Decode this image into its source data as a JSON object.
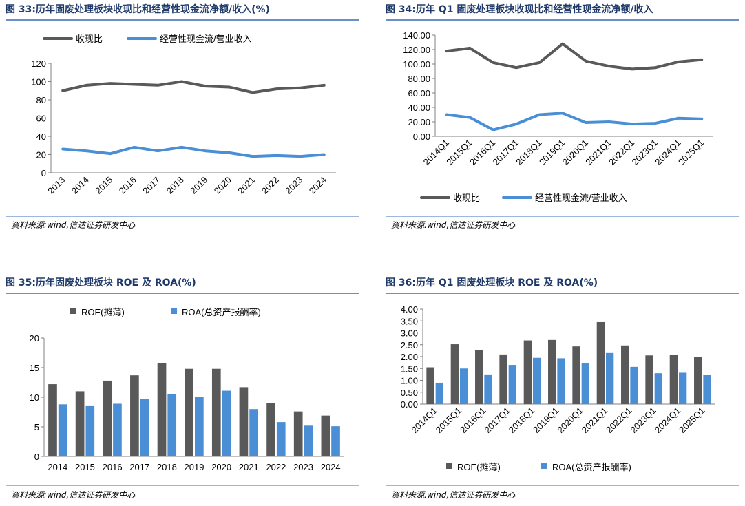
{
  "panels": [
    {
      "id": "fig33",
      "title": "图 33:历年固废处理板块收现比和经营性现金流净额/收入(%)",
      "source": "资料来源:wind,信达证券研发中心",
      "chart_data": {
        "type": "line",
        "categories": [
          "2013",
          "2014",
          "2015",
          "2016",
          "2017",
          "2018",
          "2019",
          "2020",
          "2021",
          "2022",
          "2023",
          "2024"
        ],
        "series": [
          {
            "name": "收现比",
            "color": "#595959",
            "values": [
              90,
              96,
              98,
              97,
              96,
              100,
              95,
              94,
              88,
              92,
              93,
              96
            ]
          },
          {
            "name": "经营性现金流/营业收入",
            "color": "#4a8fd6",
            "values": [
              26,
              24,
              21,
              28,
              24,
              28,
              24,
              22,
              18,
              19,
              18,
              20
            ]
          }
        ],
        "ylim": [
          0,
          120
        ],
        "yticks": [
          "0",
          "20",
          "40",
          "60",
          "80",
          "100",
          "120"
        ],
        "legend": "top"
      }
    },
    {
      "id": "fig34",
      "title": "图 34:历年 Q1 固废处理板块收现比和经营性现金流净额/收入",
      "source": "资料来源:wind,信达证券研发中心",
      "chart_data": {
        "type": "line",
        "categories": [
          "2014Q1",
          "2015Q1",
          "2016Q1",
          "2017Q1",
          "2018Q1",
          "2019Q1",
          "2020Q1",
          "2021Q1",
          "2022Q1",
          "2023Q1",
          "2024Q1",
          "2025Q1"
        ],
        "series": [
          {
            "name": "收现比",
            "color": "#595959",
            "values": [
              118,
              122,
              102,
              95,
              102,
              128,
              104,
              97,
              93,
              95,
              103,
              106
            ]
          },
          {
            "name": "经营性现金流/营业收入",
            "color": "#4a8fd6",
            "values": [
              30,
              26,
              9,
              17,
              30,
              32,
              19,
              20,
              17,
              18,
              25,
              24
            ]
          }
        ],
        "ylim": [
          0,
          140
        ],
        "yticks": [
          "0.00",
          "20.00",
          "40.00",
          "60.00",
          "80.00",
          "100.00",
          "120.00",
          "140.00"
        ],
        "legend": "bottom"
      }
    },
    {
      "id": "fig35",
      "title": "图 35:历年固废处理板块 ROE 及 ROA(%)",
      "source": "资料来源:wind,信达证券研发中心",
      "chart_data": {
        "type": "bar",
        "categories": [
          "2014",
          "2015",
          "2016",
          "2017",
          "2018",
          "2019",
          "2020",
          "2021",
          "2022",
          "2023",
          "2024"
        ],
        "series": [
          {
            "name": "ROE(摊薄)",
            "color": "#595959",
            "values": [
              12.2,
              11.0,
              12.8,
              13.7,
              15.8,
              14.8,
              14.8,
              11.7,
              9.0,
              7.6,
              6.9
            ]
          },
          {
            "name": "ROA(总资产报酬率)",
            "color": "#4a8fd6",
            "values": [
              8.8,
              8.5,
              8.9,
              9.7,
              10.5,
              10.1,
              11.1,
              8.0,
              5.8,
              5.2,
              5.1
            ]
          }
        ],
        "ylim": [
          0,
          20
        ],
        "yticks": [
          "0",
          "5",
          "10",
          "15",
          "20"
        ],
        "legend": "top"
      }
    },
    {
      "id": "fig36",
      "title": "图 36:历年 Q1 固废处理板块 ROE 及 ROA(%)",
      "source": "资料来源:wind,信达证券研发中心",
      "chart_data": {
        "type": "bar",
        "categories": [
          "2014Q1",
          "2015Q1",
          "2016Q1",
          "2017Q1",
          "2018Q1",
          "2019Q1",
          "2020Q1",
          "2021Q1",
          "2022Q1",
          "2023Q1",
          "2024Q1",
          "2025Q1"
        ],
        "series": [
          {
            "name": "ROE(摊薄)",
            "color": "#595959",
            "values": [
              1.55,
              2.52,
              2.27,
              2.09,
              2.68,
              2.7,
              2.43,
              3.45,
              2.47,
              2.05,
              2.08,
              2.0
            ]
          },
          {
            "name": "ROA(总资产报酬率)",
            "color": "#4a8fd6",
            "values": [
              0.9,
              1.5,
              1.25,
              1.65,
              1.95,
              1.93,
              1.72,
              2.15,
              1.57,
              1.3,
              1.32,
              1.24
            ]
          }
        ],
        "ylim": [
          0,
          4
        ],
        "yticks": [
          "0.00",
          "0.50",
          "1.00",
          "1.50",
          "2.00",
          "2.50",
          "3.00",
          "3.50",
          "4.00"
        ],
        "legend": "bottom"
      }
    }
  ]
}
